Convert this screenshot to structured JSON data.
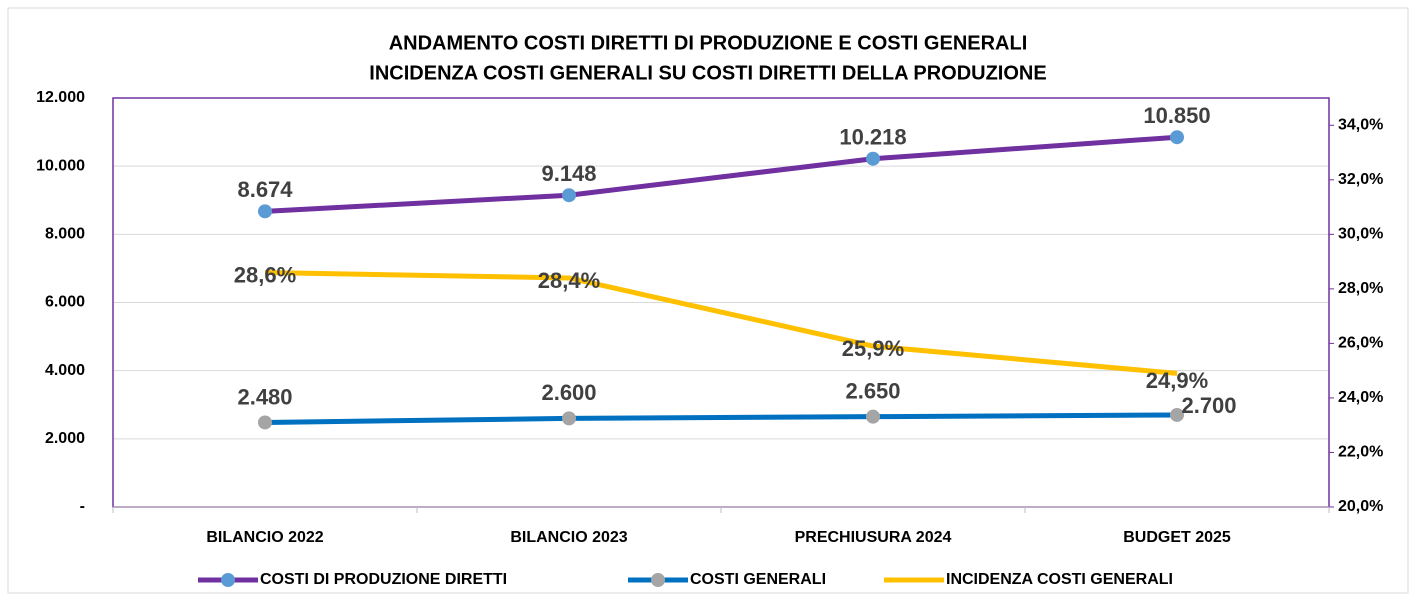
{
  "chart_data": {
    "type": "line",
    "title": [
      "ANDAMENTO COSTI DIRETTI DI PRODUZIONE E COSTI GENERALI",
      "INCIDENZA COSTI GENERALI SU COSTI DIRETTI DELLA PRODUZIONE"
    ],
    "categories": [
      "BILANCIO 2022",
      "BILANCIO 2023",
      "PRECHIUSURA 2024",
      "BUDGET 2025"
    ],
    "ylim": [
      0,
      12000
    ],
    "yticks": [
      {
        "value": 0,
        "label": "-"
      },
      {
        "value": 2000,
        "label": "2.000"
      },
      {
        "value": 4000,
        "label": "4.000"
      },
      {
        "value": 6000,
        "label": "6.000"
      },
      {
        "value": 8000,
        "label": "8.000"
      },
      {
        "value": 10000,
        "label": "10.000"
      },
      {
        "value": 12000,
        "label": "12.000"
      }
    ],
    "y2lim": [
      20,
      35
    ],
    "y2ticks": [
      {
        "value": 20,
        "label": "20,0%"
      },
      {
        "value": 22,
        "label": "22,0%"
      },
      {
        "value": 24,
        "label": "24,0%"
      },
      {
        "value": 26,
        "label": "26,0%"
      },
      {
        "value": 28,
        "label": "28,0%"
      },
      {
        "value": 30,
        "label": "30,0%"
      },
      {
        "value": 32,
        "label": "32,0%"
      },
      {
        "value": 34,
        "label": "34,0%"
      }
    ],
    "grid": true,
    "legend": "bottom",
    "series": [
      {
        "name": "COSTI DI PRODUZIONE DIRETTI",
        "color": "#7030a0",
        "marker": "#5b9bd5",
        "values": [
          8674,
          9148,
          10218,
          10850
        ],
        "value_labels": [
          "8.674",
          "9.148",
          "10.218",
          "10.850"
        ]
      },
      {
        "name": "COSTI GENERALI",
        "color": "#0070c0",
        "marker": "#a5a5a5",
        "values": [
          2480,
          2600,
          2650,
          2700
        ],
        "value_labels": [
          "2.480",
          "2.600",
          "2.650",
          "2.700"
        ]
      },
      {
        "name": "INCIDENZA COSTI GENERALI",
        "color": "#ffc000",
        "axis": "y2",
        "values": [
          28.6,
          28.4,
          25.9,
          24.9
        ],
        "value_labels": [
          "28,6%",
          "28,4%",
          "25,9%",
          "24,9%"
        ]
      }
    ]
  }
}
